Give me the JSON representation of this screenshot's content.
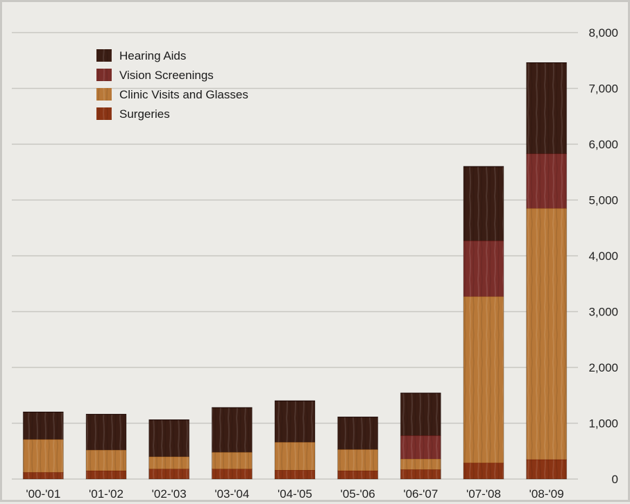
{
  "chart_data": {
    "type": "bar",
    "stacked": true,
    "categories": [
      "'00-'01",
      "'01-'02",
      "'02-'03",
      "'03-'04",
      "'04-'05",
      "'05-'06",
      "'06-'07",
      "'07-'08",
      "'08-'09"
    ],
    "series": [
      {
        "name": "Surgeries",
        "color": "#8a3414",
        "values": [
          120,
          150,
          180,
          180,
          160,
          150,
          170,
          290,
          350
        ]
      },
      {
        "name": "Clinic Visits and Glasses",
        "color": "#b87838",
        "values": [
          590,
          370,
          220,
          300,
          500,
          380,
          190,
          2980,
          4500
        ]
      },
      {
        "name": "Vision Screenings",
        "color": "#7a2e2a",
        "values": [
          0,
          0,
          0,
          0,
          0,
          0,
          420,
          1000,
          980
        ]
      },
      {
        "name": "Hearing Aids",
        "color": "#3a1d14",
        "values": [
          490,
          640,
          660,
          800,
          740,
          580,
          760,
          1330,
          1630
        ]
      }
    ],
    "legend_order": [
      "Hearing Aids",
      "Vision Screenings",
      "Clinic Visits and Glasses",
      "Surgeries"
    ],
    "y_ticks": [
      "0",
      "1,000",
      "2,000",
      "3,000",
      "4,000",
      "5,000",
      "6,000",
      "7,000",
      "8,000"
    ],
    "ylim": [
      0,
      8000
    ],
    "y_axis_side": "right",
    "grid": true,
    "legend_position": "top-left",
    "title": "",
    "xlabel": "",
    "ylabel": ""
  }
}
